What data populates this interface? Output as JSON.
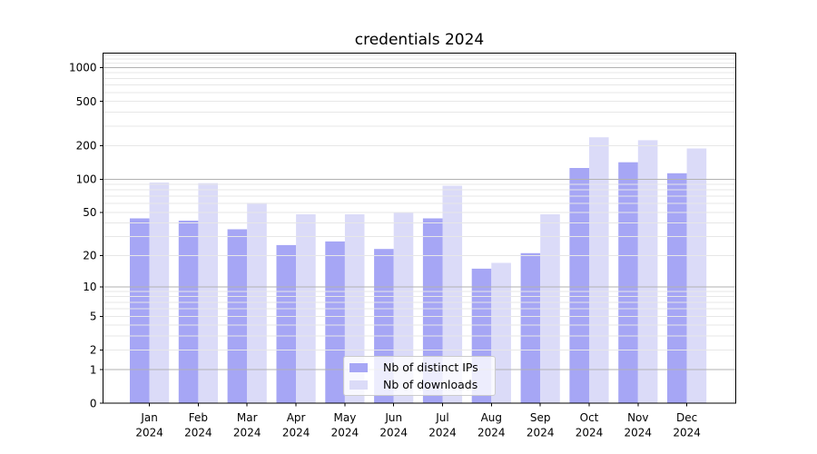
{
  "chart_data": {
    "type": "bar",
    "title": "credentials 2024",
    "categories": [
      "Jan",
      "Feb",
      "Mar",
      "Apr",
      "May",
      "Jun",
      "Jul",
      "Aug",
      "Sep",
      "Oct",
      "Nov",
      "Dec"
    ],
    "x_tick_year": "2024",
    "series": [
      {
        "name": "Nb of distinct IPs",
        "slug": "distinct-ips",
        "color": "#a6a6f5",
        "values": [
          44,
          42,
          35,
          25,
          27,
          23,
          44,
          15,
          21,
          126,
          142,
          113
        ]
      },
      {
        "name": "Nb of downloads",
        "slug": "downloads",
        "color": "#dbdbf8",
        "values": [
          93,
          92,
          61,
          48,
          48,
          50,
          87,
          17,
          48,
          238,
          224,
          189
        ]
      }
    ],
    "y_ticks": [
      0,
      1,
      2,
      5,
      10,
      20,
      50,
      100,
      200,
      500,
      1000
    ],
    "ylim": [
      0,
      1350
    ],
    "yscale": "symlog",
    "grid": "both",
    "legend_position": "lower-center",
    "colors": {
      "background": "#ffffff",
      "axis": "#000000",
      "tick_label": "#000000",
      "grid_major": "#b2b2b2",
      "grid_minor": "#e7e7e7"
    }
  }
}
